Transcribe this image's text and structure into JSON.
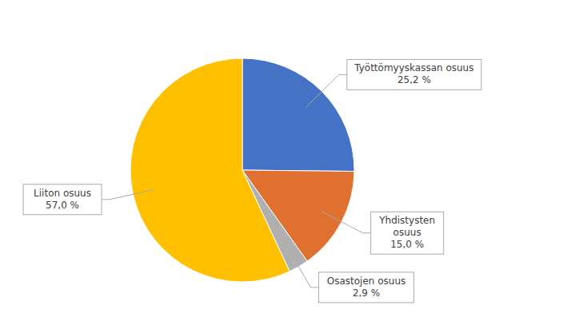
{
  "chart_data": {
    "type": "pie",
    "categories": [
      "Työttömyyskassan osuus",
      "Yhdistysten\nosuus",
      "Osastojen osuus",
      "Liiton osuus"
    ],
    "values": [
      25.2,
      15.0,
      2.9,
      57.0
    ],
    "value_labels": [
      "25,2 %",
      "15,0 %",
      "2,9 %",
      "57,0 %"
    ],
    "colors": [
      "#4472C4",
      "#E07030",
      "#B0B0B0",
      "#FFC000"
    ]
  }
}
